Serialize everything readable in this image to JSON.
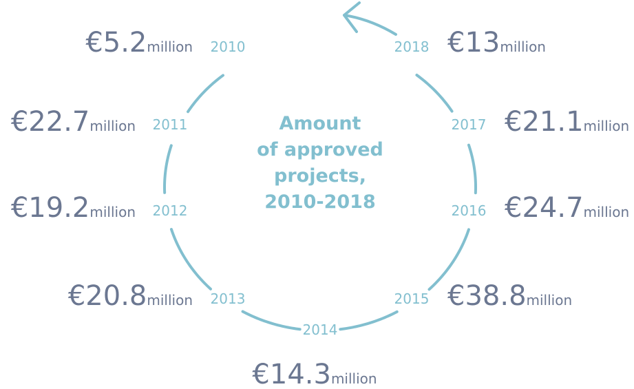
{
  "title": [
    "Amount",
    "of approved",
    "projects,",
    "2010-2018"
  ],
  "items": [
    {
      "year": "2010",
      "amount": "€5.2",
      "unit": "million"
    },
    {
      "year": "2011",
      "amount": "€22.7",
      "unit": "million"
    },
    {
      "year": "2012",
      "amount": "€19.2",
      "unit": "million"
    },
    {
      "year": "2013",
      "amount": "€20.8",
      "unit": "million"
    },
    {
      "year": "2014",
      "amount": "€14.3",
      "unit": "million"
    },
    {
      "year": "2015",
      "amount": "€38.8",
      "unit": "million"
    },
    {
      "year": "2016",
      "amount": "€24.7",
      "unit": "million"
    },
    {
      "year": "2017",
      "amount": "€21.1",
      "unit": "million"
    },
    {
      "year": "2018",
      "amount": "€13",
      "unit": "million"
    }
  ]
}
